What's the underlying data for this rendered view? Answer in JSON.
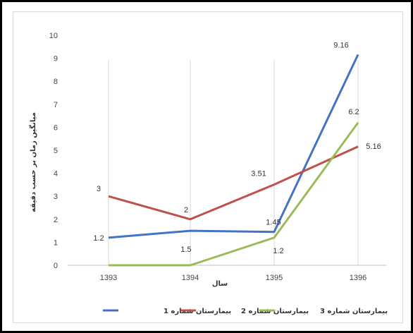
{
  "chart_data": {
    "type": "line",
    "categories": [
      "1393",
      "1394",
      "1395",
      "1396"
    ],
    "series": [
      {
        "name": "بیمارستان شماره 1",
        "color": "#4472c4",
        "values": [
          1.2,
          1.5,
          1.45,
          9.16
        ],
        "labels": [
          "1.2",
          "1.5",
          "1.45",
          "9.16"
        ]
      },
      {
        "name": "بیمارستان شماره 2",
        "color": "#c0504d",
        "values": [
          3,
          2,
          3.51,
          5.16
        ],
        "labels": [
          "3",
          "2",
          "3.51",
          "5.16"
        ]
      },
      {
        "name": "بیمارستان شماره 3",
        "color": "#9bbb59",
        "values": [
          0,
          0,
          1.2,
          6.2
        ],
        "labels": [
          "",
          "",
          "1.2",
          "6.2"
        ]
      }
    ],
    "xlabel": "سال",
    "ylabel": "میانگین زمان بر حسب دقیقه",
    "ylim": [
      0,
      10
    ],
    "yticks": [
      "0",
      "1",
      "2",
      "3",
      "4",
      "5",
      "6",
      "7",
      "8",
      "9",
      "10"
    ],
    "grid": "vertical-lines-at-categories",
    "legend": "bottom"
  }
}
